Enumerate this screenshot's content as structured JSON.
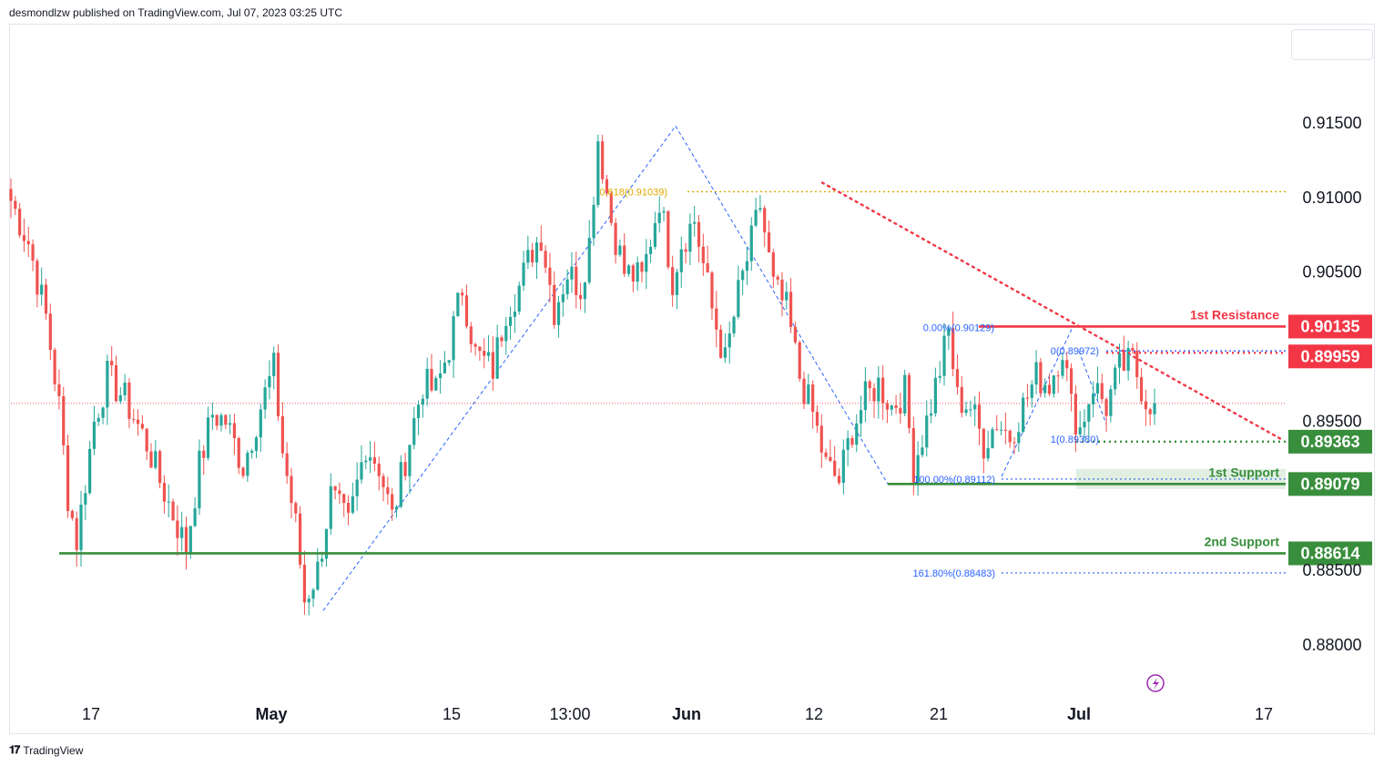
{
  "header": {
    "published": "desmondlzw published on TradingView.com, Jul 07, 2023 03:25 UTC"
  },
  "footer": {
    "brand": "TradingView"
  },
  "colors": {
    "up": "#26a69a",
    "down": "#ef5350",
    "resistance": "#f23645",
    "support": "#388e3c",
    "fib": "#2962ff",
    "fib618": "#e0a800",
    "grid": "#e0e3eb"
  },
  "chart_data": {
    "type": "candlestick",
    "ylim": [
      0.879,
      0.9165
    ],
    "y_ticks": [
      "0.91500",
      "0.91000",
      "0.90500",
      "0.89500",
      "0.88500",
      "0.88000"
    ],
    "y_tick_values": [
      0.915,
      0.91,
      0.905,
      0.895,
      0.885,
      0.88
    ],
    "x_ticks": [
      "17",
      "May",
      "15",
      "13:00",
      "Jun",
      "12",
      "21",
      "Jul",
      "17"
    ],
    "bold_x_ticks": [
      "May",
      "Jun",
      "Jul"
    ],
    "last_price": 0.8962,
    "levels": [
      {
        "label": "1st Resistance",
        "value": "0.90135",
        "price": 0.90135,
        "kind": "resistance"
      },
      {
        "label": "",
        "value": "0.89959",
        "price": 0.89959,
        "kind": "resistance"
      },
      {
        "label": "",
        "value": "0.89363",
        "price": 0.89363,
        "kind": "support"
      },
      {
        "label": "1st Support",
        "value": "0.89079",
        "price": 0.89079,
        "kind": "support"
      },
      {
        "label": "2nd Support",
        "value": "0.88614",
        "price": 0.88614,
        "kind": "support"
      }
    ],
    "fib_labels": [
      {
        "text": "0.618(0.91039)",
        "price": 0.91039
      },
      {
        "text": "0.00%(0.90129)",
        "price": 0.90129
      },
      {
        "text": "0(0.89972)",
        "price": 0.89972
      },
      {
        "text": "1(0.89380)",
        "price": 0.8938
      },
      {
        "text": "100.00%(0.89112)",
        "price": 0.89112
      },
      {
        "text": "161.80%(0.88483)",
        "price": 0.88483
      }
    ],
    "price_path": [
      [
        0,
        0.9098
      ],
      [
        4,
        0.907
      ],
      [
        8,
        0.902
      ],
      [
        11,
        0.896
      ],
      [
        13,
        0.89
      ],
      [
        15,
        0.887
      ],
      [
        19,
        0.895
      ],
      [
        22,
        0.898
      ],
      [
        26,
        0.8965
      ],
      [
        31,
        0.8935
      ],
      [
        34,
        0.891
      ],
      [
        38,
        0.888
      ],
      [
        40,
        0.8865
      ],
      [
        43,
        0.892
      ],
      [
        46,
        0.8955
      ],
      [
        49,
        0.895
      ],
      [
        53,
        0.892
      ],
      [
        57,
        0.896
      ],
      [
        60,
        0.8985
      ],
      [
        62,
        0.893
      ],
      [
        65,
        0.888
      ],
      [
        67,
        0.883
      ],
      [
        70,
        0.885
      ],
      [
        73,
        0.89
      ],
      [
        77,
        0.888
      ],
      [
        81,
        0.8935
      ],
      [
        84,
        0.892
      ],
      [
        87,
        0.8885
      ],
      [
        90,
        0.8925
      ],
      [
        94,
        0.8975
      ],
      [
        97,
        0.897
      ],
      [
        100,
        0.9
      ],
      [
        103,
        0.904
      ],
      [
        106,
        0.8995
      ],
      [
        110,
        0.8985
      ],
      [
        113,
        0.9025
      ],
      [
        116,
        0.904
      ],
      [
        119,
        0.9065
      ],
      [
        121,
        0.9075
      ],
      [
        124,
        0.9025
      ],
      [
        127,
        0.905
      ],
      [
        130,
        0.904
      ],
      [
        132,
        0.907
      ],
      [
        134,
        0.914
      ],
      [
        137,
        0.9085
      ],
      [
        140,
        0.905
      ],
      [
        144,
        0.9045
      ],
      [
        148,
        0.91
      ],
      [
        151,
        0.9045
      ],
      [
        153,
        0.907
      ],
      [
        156,
        0.9085
      ],
      [
        160,
        0.9025
      ],
      [
        163,
        0.899
      ],
      [
        166,
        0.9035
      ],
      [
        169,
        0.907
      ],
      [
        171,
        0.9095
      ],
      [
        174,
        0.904
      ],
      [
        177,
        0.9025
      ],
      [
        180,
        0.898
      ],
      [
        183,
        0.8955
      ],
      [
        186,
        0.892
      ],
      [
        189,
        0.891
      ],
      [
        192,
        0.8945
      ],
      [
        195,
        0.8965
      ],
      [
        198,
        0.8975
      ],
      [
        201,
        0.896
      ],
      [
        204,
        0.897
      ],
      [
        206,
        0.892
      ],
      [
        209,
        0.895
      ],
      [
        212,
        0.8985
      ],
      [
        214,
        0.901
      ],
      [
        216,
        0.8965
      ],
      [
        219,
        0.896
      ],
      [
        222,
        0.8935
      ],
      [
        225,
        0.895
      ],
      [
        228,
        0.894
      ],
      [
        231,
        0.896
      ],
      [
        234,
        0.898
      ],
      [
        237,
        0.8975
      ],
      [
        240,
        0.9
      ],
      [
        242,
        0.896
      ],
      [
        244,
        0.8945
      ],
      [
        247,
        0.8975
      ],
      [
        250,
        0.896
      ],
      [
        253,
        0.8985
      ],
      [
        256,
        0.899
      ],
      [
        259,
        0.8965
      ],
      [
        261,
        0.8962
      ]
    ]
  }
}
